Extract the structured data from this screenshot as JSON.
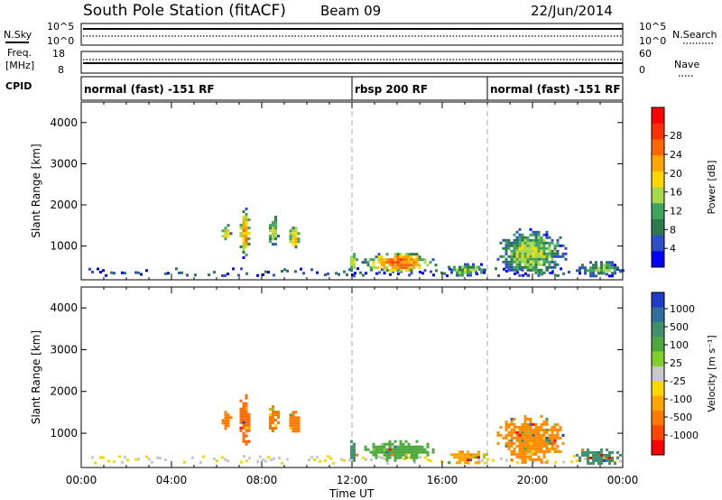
{
  "header": {
    "station": "South Pole Station (fitACF)",
    "beam": "Beam 09",
    "date": "22/Jun/2014"
  },
  "side_labels": {
    "nsky": "N.Sky",
    "nsearch": "N.Search",
    "freq_l1": "Freq.",
    "freq_l2": "[MHz]",
    "nave": "Nave",
    "cpid": "CPID"
  },
  "small_panels": {
    "noise_left_ticks": [
      "10^5",
      "10^0"
    ],
    "noise_right_ticks": [
      "10^5",
      "10^0"
    ],
    "freq_left_ticks": [
      "18",
      "8"
    ],
    "nave_right_ticks": [
      "60",
      "0"
    ]
  },
  "cpid_segments": [
    {
      "label": "normal (fast) -151 RF",
      "start_h": 0
    },
    {
      "label": "rbsp 200 RF",
      "start_h": 12
    },
    {
      "label": "normal (fast) -151 RF",
      "start_h": 18
    }
  ],
  "chart_data": [
    {
      "type": "heatmap",
      "name": "power",
      "ylabel": "Slant Range [km]",
      "xlabel": "Time UT",
      "xlim": [
        0,
        24
      ],
      "ylim": [
        180,
        4500
      ],
      "yticks": [
        1000,
        2000,
        3000,
        4000
      ],
      "xticks": [
        "00:00",
        "04:00",
        "08:00",
        "12:00",
        "16:00",
        "20:00",
        "00:00"
      ],
      "colorbar": {
        "label": "Power [dB]",
        "ticks": [
          "4",
          "8",
          "12",
          "16",
          "20",
          "24",
          "28"
        ],
        "colors": [
          "#0000ff",
          "#2d4fc8",
          "#2e7a4e",
          "#3ea65a",
          "#a6d84a",
          "#ffd700",
          "#ffa500",
          "#ff6600",
          "#ff3000",
          "#ff0000"
        ]
      },
      "echo_regions": [
        {
          "t0": 6.1,
          "t1": 6.6,
          "r0": 1100,
          "r1": 1600,
          "level": 0.55
        },
        {
          "t0": 6.9,
          "t1": 7.5,
          "r0": 700,
          "r1": 2000,
          "level": 0.7
        },
        {
          "t0": 8.2,
          "t1": 8.7,
          "r0": 1000,
          "r1": 1800,
          "level": 0.5
        },
        {
          "t0": 9.1,
          "t1": 9.7,
          "r0": 900,
          "r1": 1600,
          "level": 0.6
        },
        {
          "t0": 11.8,
          "t1": 12.2,
          "r0": 300,
          "r1": 900,
          "level": 0.55
        },
        {
          "t0": 12.3,
          "t1": 15.7,
          "r0": 350,
          "r1": 900,
          "level": 0.75
        },
        {
          "t0": 16.0,
          "t1": 18.0,
          "r0": 250,
          "r1": 650,
          "level": 0.4
        },
        {
          "t0": 18.3,
          "t1": 21.5,
          "r0": 250,
          "r1": 1500,
          "level": 0.45
        },
        {
          "t0": 21.8,
          "t1": 24.0,
          "r0": 250,
          "r1": 700,
          "level": 0.35
        }
      ]
    },
    {
      "type": "heatmap",
      "name": "velocity",
      "ylabel": "Slant Range [km]",
      "xlabel": "Time UT",
      "xlim": [
        0,
        24
      ],
      "ylim": [
        180,
        4500
      ],
      "yticks": [
        1000,
        2000,
        3000,
        4000
      ],
      "xticks": [
        "00:00",
        "04:00",
        "08:00",
        "12:00",
        "16:00",
        "20:00",
        "00:00"
      ],
      "colorbar": {
        "label": "Velocity [m s⁻¹]",
        "ticks": [
          "1000",
          "500",
          "100",
          "25",
          "-25",
          "-100",
          "-500",
          "-1000"
        ],
        "colors": [
          "#1e3cc8",
          "#2f6ea0",
          "#3f8f6a",
          "#4caa3c",
          "#7fd02a",
          "#c8c8c8",
          "#ffd700",
          "#ffa500",
          "#ff7a00",
          "#ff4500",
          "#ff0000"
        ]
      },
      "echo_regions": [
        {
          "t0": 6.1,
          "t1": 6.6,
          "r0": 1100,
          "r1": 1600,
          "color": "#ff7a00"
        },
        {
          "t0": 6.9,
          "t1": 7.5,
          "r0": 700,
          "r1": 2000,
          "color": "#ff6a00"
        },
        {
          "t0": 8.2,
          "t1": 8.7,
          "r0": 1000,
          "r1": 1800,
          "color": "#ff7a00"
        },
        {
          "t0": 9.1,
          "t1": 9.7,
          "r0": 900,
          "r1": 1600,
          "color": "#ff7a00"
        },
        {
          "t0": 11.8,
          "t1": 12.2,
          "r0": 300,
          "r1": 900,
          "color": "#3f8f6a"
        },
        {
          "t0": 12.3,
          "t1": 15.7,
          "r0": 350,
          "r1": 900,
          "color": "#4caa3c"
        },
        {
          "t0": 16.0,
          "t1": 18.0,
          "r0": 250,
          "r1": 650,
          "color": "#ffa500"
        },
        {
          "t0": 18.3,
          "t1": 21.5,
          "r0": 250,
          "r1": 1500,
          "color": "#ff8c00"
        },
        {
          "t0": 21.8,
          "t1": 24.0,
          "r0": 250,
          "r1": 700,
          "color": "#3f8f6a"
        }
      ]
    }
  ]
}
